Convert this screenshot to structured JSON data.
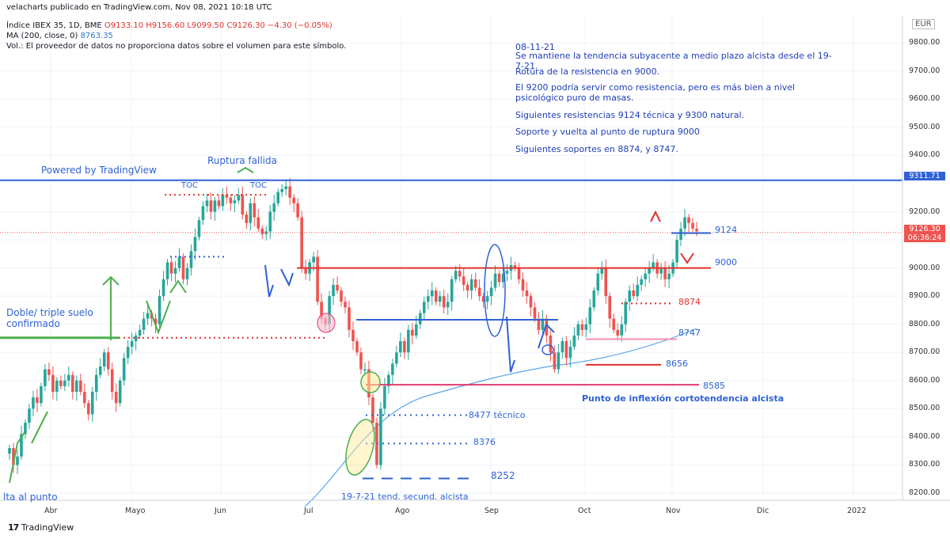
{
  "header": {
    "line1": "velacharts publicado en TradingView.com, Nov 08, 2021 10:18 UTC",
    "symbol": "Índice IBEX 35, 1D, BME",
    "ohlc": "O9133.10  H9156.60  L9099.50  C9126.30  −4.30 (−0.05%)",
    "ma_label": "MA (200, close, 0)",
    "ma_value": "8763.35",
    "volume_note": "Vol.: El proveedor de datos no proporciona datos sobre el volumen para este símbolo."
  },
  "analysis_notes": [
    "08-11-21",
    "Se mantiene la tendencia subyacente a medio plazo alcista desde el 19-7-21.",
    "Rotura de la resistencia en 9000.",
    "El 9200 podría servir como resistencia, pero es más bien a nivel psicológico puro de masas.",
    "Siguientes resistencias  9124 técnica y 9300 natural.",
    "Soporte y vuelta al punto de ruptura 9000",
    "Siguientes soportes en 8874, y 8747."
  ],
  "currency": "EUR",
  "y_axis_ticks": [
    "9800.00",
    "9700.00",
    "9600.00",
    "9500.00",
    "9400.00",
    "9200.00",
    "9100.00",
    "9000.00",
    "8900.00",
    "8800.00",
    "8700.00",
    "8600.00",
    "8500.00",
    "8400.00",
    "8300.00",
    "8200.00"
  ],
  "x_axis_ticks": [
    "Abr",
    "Mayo",
    "Jun",
    "Jul",
    "Ago",
    "Sep",
    "Oct",
    "Nov",
    "Dic",
    "2022"
  ],
  "price_boxes": {
    "blue_level": "9311.71",
    "last_price": "9126.30",
    "countdown": "06:36:24"
  },
  "annotations": {
    "powered": "Powered by TradingView",
    "ruptura": "Ruptura fallida",
    "toc1": "TOC",
    "toc2": "TOC",
    "doble": "Doble/ triple suelo",
    "confirmado": "confirmado",
    "vuelta": "lta al punto",
    "l9124": "9124",
    "l9000": "9000",
    "l8874": "8874",
    "l8747": "8747",
    "l8656": "8656",
    "l8585": "8585",
    "inflexion": "Punto de inflexión cortotendencia alcista",
    "l8477": "8477 técnico",
    "l8376": "8376",
    "l8252": "8252",
    "tend": "19-7-21 tend. secund. alcista"
  },
  "footer_logo": "TradingView",
  "colors": {
    "up": "#26a69a",
    "down": "#ef5350",
    "resistance": "#e0312c",
    "support_blue": "#2f62d6",
    "ma": "#5aa6e6",
    "pink": "#e23a6e",
    "green": "#4caf50"
  },
  "chart_data": {
    "type": "candlestick",
    "symbol": "Índice IBEX 35",
    "timeframe": "1D",
    "y_range": [
      8160,
      9870
    ],
    "ohlc_last": {
      "open": 9133.1,
      "high": 9156.6,
      "low": 9099.5,
      "close": 9126.3
    },
    "ma200_last": 8763.35,
    "horizontal_levels": [
      9311.71,
      9124,
      9000,
      8874,
      8816,
      8747,
      8656,
      8585,
      8477,
      8376,
      8252
    ],
    "closes": [
      8360,
      8300,
      8330,
      8410,
      8450,
      8500,
      8540,
      8520,
      8580,
      8640,
      8620,
      8560,
      8600,
      8580,
      8600,
      8620,
      8560,
      8600,
      8560,
      8520,
      8480,
      8560,
      8620,
      8650,
      8700,
      8640,
      8560,
      8520,
      8600,
      8680,
      8720,
      8740,
      8760,
      8780,
      8820,
      8840,
      8820,
      8800,
      8900,
      8960,
      9020,
      8980,
      9000,
      9040,
      8960,
      9000,
      9060,
      9110,
      9170,
      9220,
      9240,
      9200,
      9240,
      9220,
      9260,
      9250,
      9230,
      9240,
      9260,
      9190,
      9160,
      9230,
      9180,
      9140,
      9120,
      9130,
      9200,
      9230,
      9270,
      9280,
      9290,
      9250,
      9230,
      9180,
      9000,
      8980,
      9020,
      9040,
      8880,
      8820,
      8800,
      8900,
      8940,
      8920,
      8880,
      8860,
      8780,
      8740,
      8700,
      8640,
      8640,
      8540,
      8450,
      8300,
      8500,
      8580,
      8620,
      8660,
      8700,
      8740,
      8700,
      8780,
      8760,
      8800,
      8840,
      8880,
      8900,
      8920,
      8880,
      8900,
      8860,
      8880,
      8960,
      8990,
      8970,
      8940,
      8920,
      8960,
      8930,
      8900,
      8880,
      8900,
      8930,
      8980,
      8950,
      8980,
      8990,
      9010,
      9000,
      8960,
      8920,
      8900,
      8860,
      8820,
      8780,
      8820,
      8760,
      8700,
      8640,
      8700,
      8740,
      8680,
      8720,
      8760,
      8800,
      8780,
      8800,
      8860,
      8920,
      8980,
      9000,
      8900,
      8820,
      8780,
      8760,
      8800,
      8880,
      8920,
      8900,
      8940,
      8960,
      8980,
      9000,
      9020,
      8980,
      9000,
      8960,
      8980,
      9020,
      9100,
      9140,
      9180,
      9160,
      9140,
      9130
    ]
  }
}
